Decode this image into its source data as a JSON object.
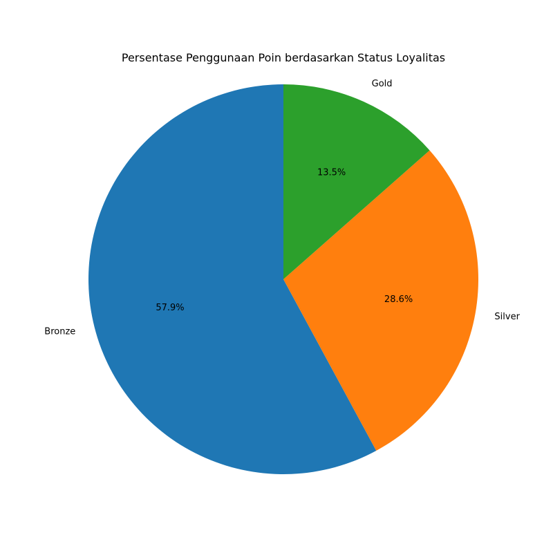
{
  "chart_data": {
    "type": "pie",
    "title": "Persentase Penggunaan Poin berdasarkan Status Loyalitas",
    "start_angle_deg": 90,
    "direction": "counterclockwise",
    "slices": [
      {
        "label": "Bronze",
        "value": 57.9,
        "pct_label": "57.9%",
        "color": "#1f77b4"
      },
      {
        "label": "Silver",
        "value": 28.6,
        "pct_label": "28.6%",
        "color": "#ff7f0e"
      },
      {
        "label": "Gold",
        "value": 13.5,
        "pct_label": "13.5%",
        "color": "#2ca02c"
      }
    ]
  }
}
